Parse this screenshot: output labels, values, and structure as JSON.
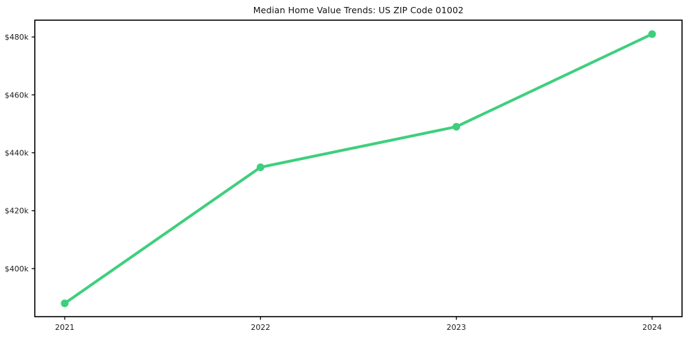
{
  "chart": {
    "title": "Median Home Value Trends: US ZIP Code 01002"
  },
  "chart_data": {
    "type": "line",
    "title": "Median Home Value Trends: US ZIP Code 01002",
    "x": [
      2021,
      2022,
      2023,
      2024
    ],
    "x_tick_labels": [
      "2021",
      "2022",
      "2023",
      "2024"
    ],
    "values": [
      388000,
      435000,
      449000,
      481000
    ],
    "y_ticks": [
      400000,
      420000,
      440000,
      460000,
      480000
    ],
    "y_tick_labels": [
      "$400k",
      "$420k",
      "$440k",
      "$460k",
      "$480k"
    ],
    "ylim": [
      383400,
      485800
    ],
    "xlabel": "",
    "ylabel": "",
    "grid": false,
    "legend": false,
    "line_color": "#3ecf7d",
    "marker_color": "#3ecf7d",
    "axis_color": "#000000",
    "text_color": "#1a1a1a",
    "background": "#ffffff"
  }
}
